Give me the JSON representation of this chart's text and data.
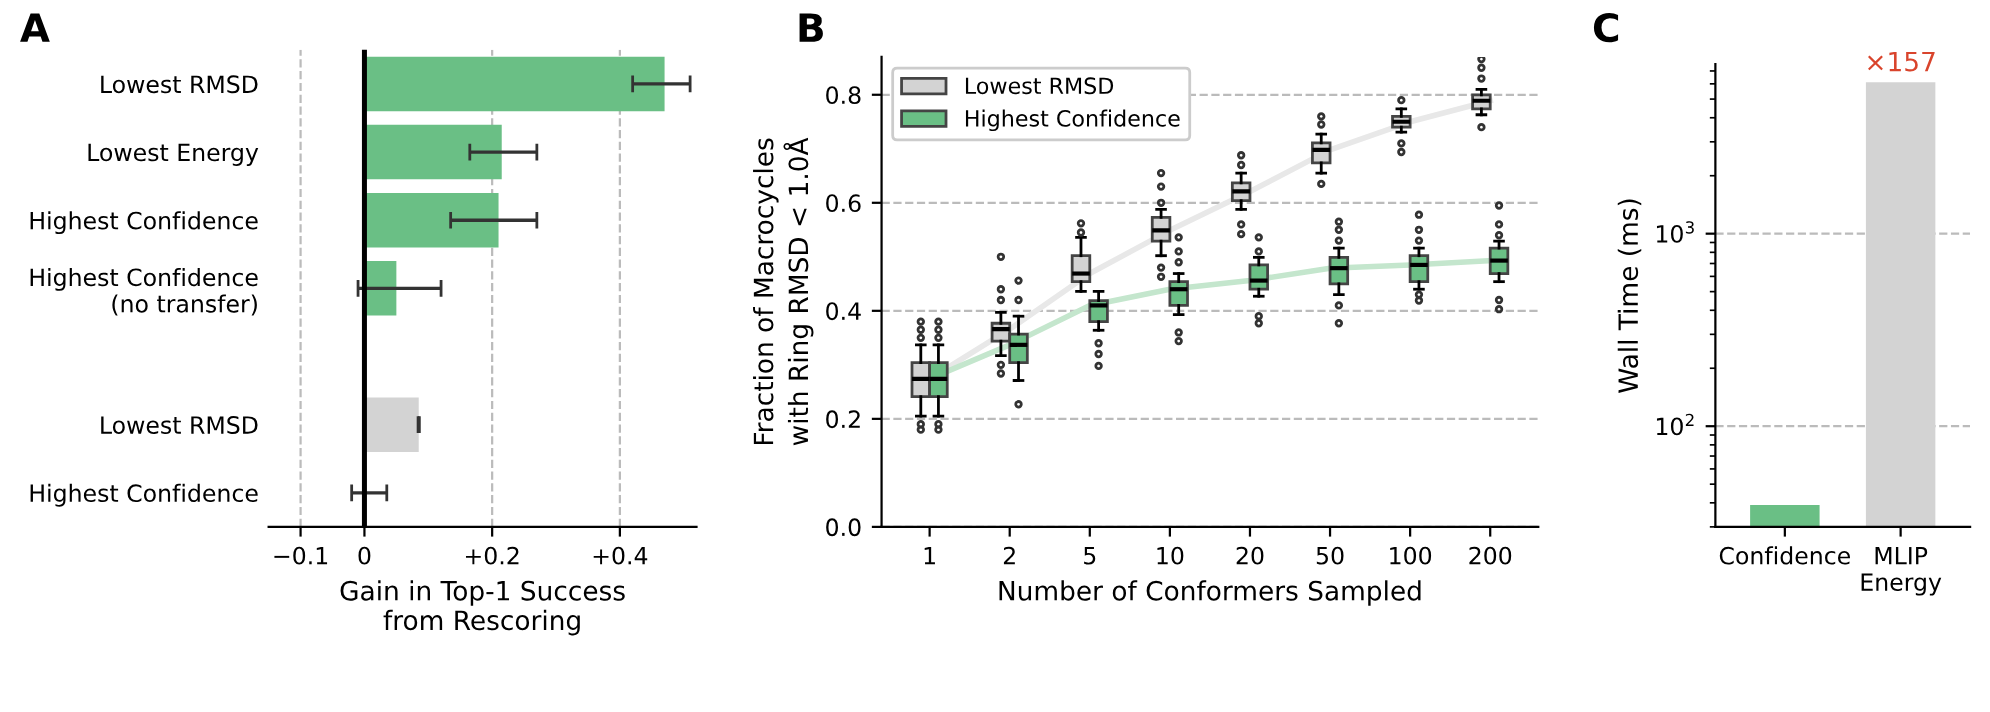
{
  "chart_data": [
    {
      "type": "bar",
      "title": "A",
      "orientation": "horizontal",
      "xlabel": "Gain in Top-1 Success\nfrom Rescoring",
      "categories": [
        "Lowest RMSD",
        "Lowest Energy",
        "Highest Confidence",
        "Highest Confidence\n(no transfer)",
        null,
        "Lowest RMSD",
        "Highest Confidence"
      ],
      "series": [
        {
          "color": "#6abf85",
          "values": [
            0.47,
            0.215,
            0.21,
            0.05,
            null,
            null,
            null
          ],
          "errors": [
            [
              0.42,
              0.51
            ],
            [
              0.165,
              0.27
            ],
            [
              0.135,
              0.27
            ],
            [
              -0.01,
              0.12
            ],
            null,
            null,
            null
          ]
        },
        {
          "color": "#d3d3d3",
          "values": [
            null,
            null,
            null,
            null,
            null,
            0.085,
            0.003
          ],
          "errors": [
            null,
            null,
            null,
            null,
            null,
            [
              0.084,
              0.086
            ],
            [
              -0.02,
              0.035
            ]
          ]
        }
      ],
      "xlim": [
        -0.15,
        0.52
      ],
      "xticks": [
        {
          "value": -0.1,
          "label": "−0.1"
        },
        0,
        {
          "value": 0.2,
          "label": "+0.2"
        },
        {
          "value": 0.4,
          "label": "+0.4"
        }
      ],
      "ref_lines": [
        {
          "axis": "x",
          "value": 0,
          "color": "#000000",
          "line_style": "solid"
        }
      ],
      "grid": "x"
    },
    {
      "type": "box",
      "title": "B",
      "xlabel": "Number of Conformers Sampled",
      "ylabel": "Fraction of Macrocycles\nwith Ring RMSD < 1.0Å",
      "categories": [
        "1",
        "2",
        "5",
        "10",
        "20",
        "50",
        "100",
        "200"
      ],
      "series": [
        {
          "type": "line",
          "color": "#e8e8e8",
          "values": [
            0.274,
            0.366,
            0.469,
            0.549,
            0.621,
            0.698,
            0.75,
            0.789
          ]
        },
        {
          "type": "line",
          "color": "#c4e6cd",
          "values": [
            0.274,
            0.337,
            0.41,
            0.44,
            0.456,
            0.479,
            0.485,
            0.493
          ]
        },
        {
          "type": "box",
          "name": "Lowest RMSD",
          "color": "#d3d3d3",
          "boxes": [
            {
              "low": 0.205,
              "q1": 0.241,
              "median": 0.274,
              "q3": 0.304,
              "high": 0.337,
              "outliers": [
                0.18,
                0.19,
                0.35,
                0.365,
                0.38
              ]
            },
            {
              "low": 0.317,
              "q1": 0.344,
              "median": 0.366,
              "q3": 0.377,
              "high": 0.397,
              "outliers": [
                0.284,
                0.3,
                0.42,
                0.44,
                0.5
              ]
            },
            {
              "low": 0.436,
              "q1": 0.454,
              "median": 0.469,
              "q3": 0.502,
              "high": 0.536,
              "outliers": [
                0.545,
                0.562
              ]
            },
            {
              "low": 0.502,
              "q1": 0.529,
              "median": 0.549,
              "q3": 0.573,
              "high": 0.588,
              "outliers": [
                0.463,
                0.48,
                0.6,
                0.63,
                0.655
              ]
            },
            {
              "low": 0.588,
              "q1": 0.604,
              "median": 0.621,
              "q3": 0.637,
              "high": 0.655,
              "outliers": [
                0.542,
                0.56,
                0.67,
                0.688
              ]
            },
            {
              "low": 0.655,
              "q1": 0.674,
              "median": 0.698,
              "q3": 0.711,
              "high": 0.727,
              "outliers": [
                0.635,
                0.745,
                0.76
              ]
            },
            {
              "low": 0.731,
              "q1": 0.74,
              "median": 0.75,
              "q3": 0.76,
              "high": 0.774,
              "outliers": [
                0.694,
                0.71,
                0.79
              ]
            },
            {
              "low": 0.763,
              "q1": 0.774,
              "median": 0.789,
              "q3": 0.8,
              "high": 0.81,
              "outliers": [
                0.74,
                0.83,
                0.85,
                0.866
              ]
            }
          ]
        },
        {
          "type": "box",
          "name": "Highest Confidence",
          "color": "#6abf85",
          "boxes": [
            {
              "low": 0.205,
              "q1": 0.241,
              "median": 0.274,
              "q3": 0.304,
              "high": 0.337,
              "outliers": [
                0.18,
                0.19,
                0.35,
                0.365,
                0.38
              ]
            },
            {
              "low": 0.271,
              "q1": 0.304,
              "median": 0.337,
              "q3": 0.357,
              "high": 0.39,
              "outliers": [
                0.227,
                0.42,
                0.456
              ]
            },
            {
              "low": 0.364,
              "q1": 0.38,
              "median": 0.41,
              "q3": 0.419,
              "high": 0.436,
              "outliers": [
                0.298,
                0.32,
                0.34
              ]
            },
            {
              "low": 0.393,
              "q1": 0.41,
              "median": 0.44,
              "q3": 0.454,
              "high": 0.469,
              "outliers": [
                0.344,
                0.36,
                0.49,
                0.51,
                0.536
              ]
            },
            {
              "low": 0.427,
              "q1": 0.44,
              "median": 0.456,
              "q3": 0.485,
              "high": 0.499,
              "outliers": [
                0.377,
                0.39,
                0.51,
                0.536
              ]
            },
            {
              "low": 0.43,
              "q1": 0.45,
              "median": 0.479,
              "q3": 0.499,
              "high": 0.516,
              "outliers": [
                0.377,
                0.41,
                0.53,
                0.55,
                0.565
              ]
            },
            {
              "low": 0.44,
              "q1": 0.454,
              "median": 0.485,
              "q3": 0.502,
              "high": 0.516,
              "outliers": [
                0.419,
                0.43,
                0.53,
                0.55,
                0.578
              ]
            },
            {
              "low": 0.454,
              "q1": 0.469,
              "median": 0.493,
              "q3": 0.516,
              "high": 0.529,
              "outliers": [
                0.403,
                0.42,
                0.54,
                0.56,
                0.595
              ]
            }
          ]
        }
      ],
      "ylim": [
        0,
        0.87
      ],
      "yticks": [
        {
          "value": 0,
          "label": "0.0"
        },
        0.2,
        0.4,
        0.6,
        0.8
      ],
      "grid": "y",
      "legend": "top left"
    },
    {
      "type": "bar",
      "title": "C",
      "ylabel": "Wall Time (ms)",
      "log": true,
      "categories": [
        "Confidence",
        "MLIP\nEnergy"
      ],
      "values": [
        39,
        6120
      ],
      "colors": [
        "#6abf85",
        "#d3d3d3"
      ],
      "ylim": [
        30,
        7600
      ],
      "yticks": [
        {
          "value": 100,
          "label": "10$^{2}$"
        },
        {
          "value": 1000,
          "label": "10$^{3}$"
        }
      ],
      "annotations": [
        {
          "text": "×157",
          "x": "MLIP\nEnergy",
          "y": 6120
        }
      ],
      "grid": "y"
    }
  ]
}
